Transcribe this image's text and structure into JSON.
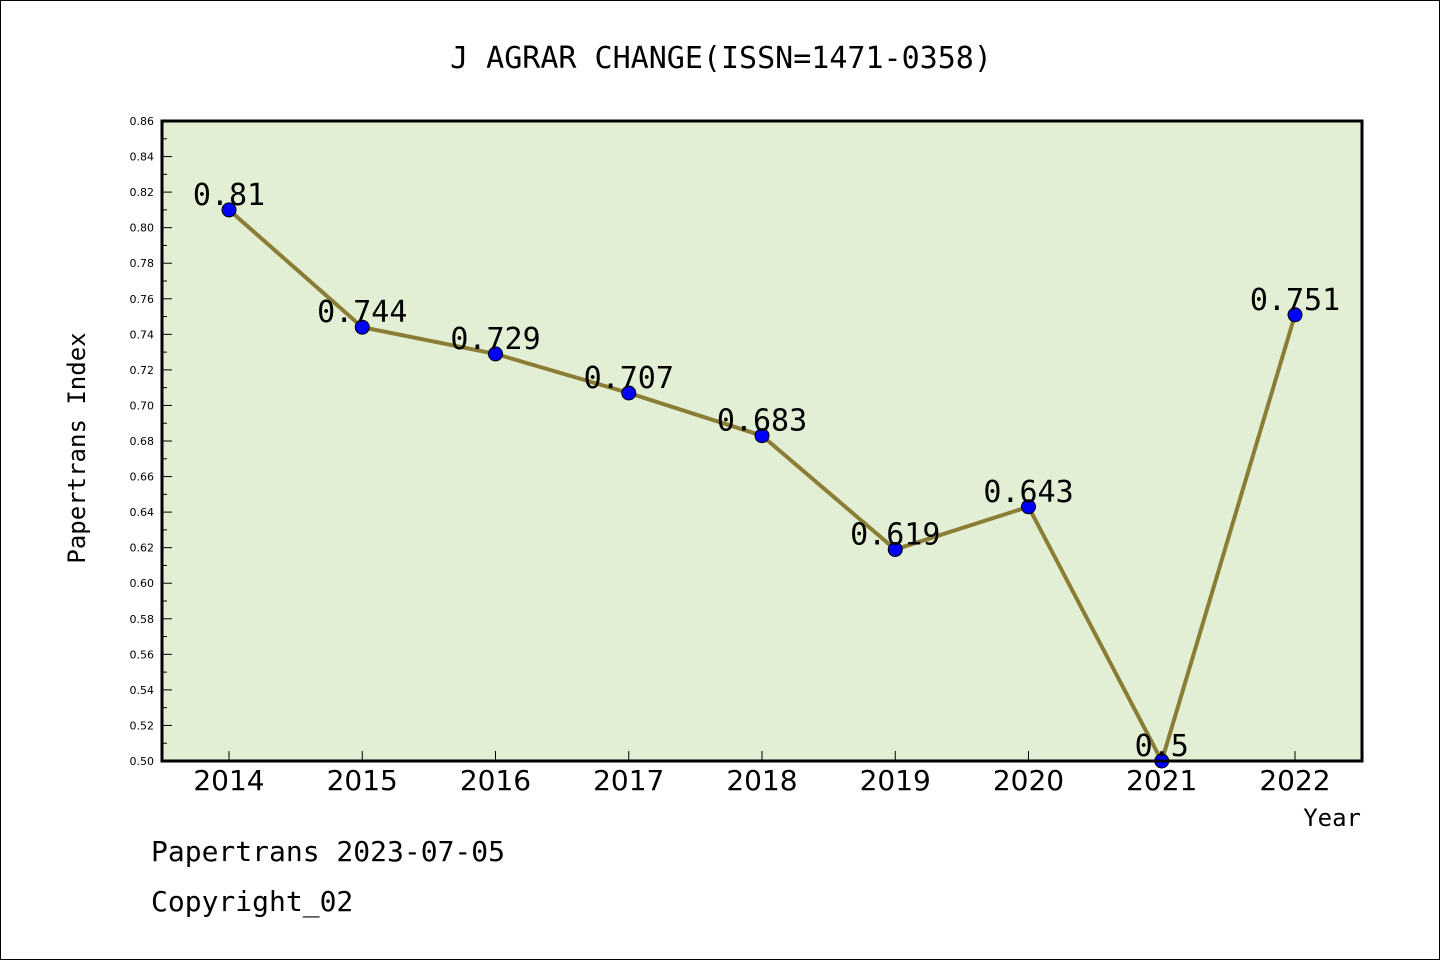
{
  "chart_data": {
    "type": "line",
    "title": "J AGRAR CHANGE(ISSN=1471-0358)",
    "xlabel": "Year",
    "ylabel": "Papertrans Index",
    "categories": [
      "2014",
      "2015",
      "2016",
      "2017",
      "2018",
      "2019",
      "2020",
      "2021",
      "2022"
    ],
    "values": [
      0.81,
      0.744,
      0.729,
      0.707,
      0.683,
      0.619,
      0.643,
      0.5,
      0.751
    ],
    "data_labels": [
      "0.81",
      "0.744",
      "0.729",
      "0.707",
      "0.683",
      "0.619",
      "0.643",
      "0.5",
      "0.751"
    ],
    "ylim": [
      0.5,
      0.86
    ],
    "yticks": [
      "0.50",
      "0.52",
      "0.54",
      "0.56",
      "0.58",
      "0.60",
      "0.62",
      "0.64",
      "0.66",
      "0.68",
      "0.70",
      "0.72",
      "0.74",
      "0.76",
      "0.78",
      "0.80",
      "0.82",
      "0.84",
      "0.86"
    ],
    "grid": false,
    "plot_background": "#e2efd4",
    "line_color": "#8b7d35",
    "marker_color": "#0000ff"
  },
  "footer": {
    "date_line": "Papertrans 2023-07-05",
    "copyright_line": "Copyright_02"
  }
}
